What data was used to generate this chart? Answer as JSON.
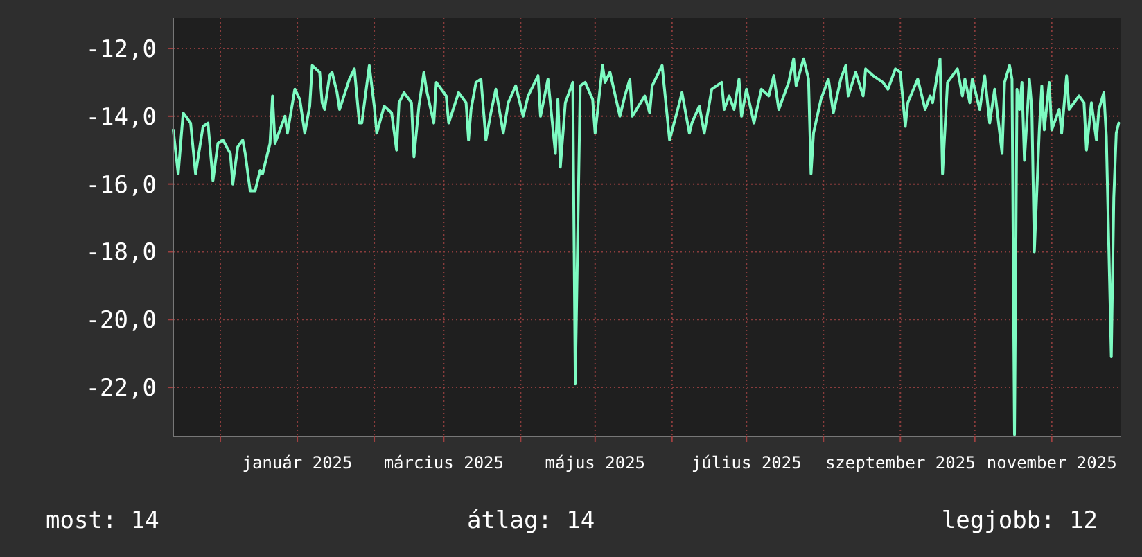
{
  "chart_data": {
    "type": "line",
    "x": [
      "2024-11-12",
      "2024-11-14",
      "2024-11-16",
      "2024-11-19",
      "2024-11-21",
      "2024-11-24",
      "2024-11-26",
      "2024-11-28",
      "2024-11-30",
      "2024-12-02",
      "2024-12-05",
      "2024-12-06",
      "2024-12-08",
      "2024-12-10",
      "2024-12-11",
      "2024-12-13",
      "2024-12-15",
      "2024-12-17",
      "2024-12-18",
      "2024-12-21",
      "2024-12-22",
      "2024-12-23",
      "2024-12-27",
      "2024-12-28",
      "2024-12-31",
      "2025-01-02",
      "2025-01-04",
      "2025-01-06",
      "2025-01-07",
      "2025-01-10",
      "2025-01-11",
      "2025-01-12",
      "2025-01-14",
      "2025-01-15",
      "2025-01-17",
      "2025-01-18",
      "2025-01-22",
      "2025-01-24",
      "2025-01-26",
      "2025-01-27",
      "2025-01-30",
      "2025-02-01",
      "2025-02-02",
      "2025-02-05",
      "2025-02-08",
      "2025-02-10",
      "2025-02-11",
      "2025-02-13",
      "2025-02-16",
      "2025-02-17",
      "2025-02-19",
      "2025-02-21",
      "2025-02-22",
      "2025-02-25",
      "2025-02-26",
      "2025-03-02",
      "2025-03-03",
      "2025-03-07",
      "2025-03-10",
      "2025-03-11",
      "2025-03-12",
      "2025-03-14",
      "2025-03-16",
      "2025-03-18",
      "2025-03-20",
      "2025-03-22",
      "2025-03-25",
      "2025-03-27",
      "2025-03-30",
      "2025-04-02",
      "2025-04-04",
      "2025-04-08",
      "2025-04-09",
      "2025-04-12",
      "2025-04-15",
      "2025-04-16",
      "2025-04-17",
      "2025-04-19",
      "2025-04-22",
      "2025-04-23",
      "2025-04-25",
      "2025-04-27",
      "2025-04-30",
      "2025-05-01",
      "2025-05-04",
      "2025-05-05",
      "2025-05-07",
      "2025-05-11",
      "2025-05-13",
      "2025-05-15",
      "2025-05-16",
      "2025-05-21",
      "2025-05-23",
      "2025-05-24",
      "2025-05-28",
      "2025-05-31",
      "2025-06-04",
      "2025-06-05",
      "2025-06-08",
      "2025-06-09",
      "2025-06-12",
      "2025-06-14",
      "2025-06-17",
      "2025-06-21",
      "2025-06-22",
      "2025-06-24",
      "2025-06-26",
      "2025-06-28",
      "2025-06-29",
      "2025-07-01",
      "2025-07-04",
      "2025-07-07",
      "2025-07-10",
      "2025-07-12",
      "2025-07-14",
      "2025-07-18",
      "2025-07-20",
      "2025-07-21",
      "2025-07-24",
      "2025-07-26",
      "2025-07-27",
      "2025-07-28",
      "2025-07-31",
      "2025-08-03",
      "2025-08-05",
      "2025-08-08",
      "2025-08-10",
      "2025-08-11",
      "2025-08-14",
      "2025-08-17",
      "2025-08-18",
      "2025-08-21",
      "2025-08-25",
      "2025-08-27",
      "2025-08-30",
      "2025-09-01",
      "2025-09-03",
      "2025-09-04",
      "2025-09-08",
      "2025-09-11",
      "2025-09-13",
      "2025-09-14",
      "2025-09-17",
      "2025-09-18",
      "2025-09-20",
      "2025-09-24",
      "2025-09-26",
      "2025-09-27",
      "2025-09-29",
      "2025-09-30",
      "2025-10-03",
      "2025-10-05",
      "2025-10-07",
      "2025-10-09",
      "2025-10-12",
      "2025-10-13",
      "2025-10-15",
      "2025-10-16",
      "2025-10-17",
      "2025-10-18",
      "2025-10-19",
      "2025-10-20",
      "2025-10-21",
      "2025-10-23",
      "2025-10-24",
      "2025-10-25",
      "2025-10-27",
      "2025-10-28",
      "2025-10-29",
      "2025-10-31",
      "2025-11-01",
      "2025-11-04",
      "2025-11-05",
      "2025-11-07",
      "2025-11-08",
      "2025-11-12",
      "2025-11-14",
      "2025-11-15",
      "2025-11-17",
      "2025-11-19",
      "2025-11-20",
      "2025-11-22",
      "2025-11-23",
      "2025-11-25",
      "2025-11-26",
      "2025-11-27",
      "2025-11-28"
    ],
    "series": [
      {
        "color": "#7dfbc2",
        "values": [
          -14.4,
          -15.7,
          -13.9,
          -14.2,
          -15.7,
          -14.3,
          -14.2,
          -15.9,
          -14.8,
          -14.7,
          -15.1,
          -16.0,
          -14.9,
          -14.7,
          -15.1,
          -16.2,
          -16.2,
          -15.6,
          -15.7,
          -14.8,
          -13.4,
          -14.8,
          -14.0,
          -14.5,
          -13.2,
          -13.5,
          -14.5,
          -13.7,
          -12.5,
          -12.7,
          -13.6,
          -13.8,
          -12.8,
          -12.7,
          -13.3,
          -13.8,
          -12.9,
          -12.6,
          -14.2,
          -14.2,
          -12.5,
          -13.7,
          -14.5,
          -13.7,
          -13.9,
          -15.0,
          -13.6,
          -13.3,
          -13.6,
          -15.2,
          -13.7,
          -12.7,
          -13.2,
          -14.2,
          -13.0,
          -13.4,
          -14.2,
          -13.3,
          -13.6,
          -14.7,
          -13.8,
          -13.0,
          -12.9,
          -14.7,
          -13.9,
          -13.2,
          -14.5,
          -13.6,
          -13.1,
          -14.0,
          -13.4,
          -12.8,
          -14.0,
          -12.9,
          -15.1,
          -13.5,
          -15.5,
          -13.6,
          -13.0,
          -21.9,
          -13.1,
          -13.0,
          -13.5,
          -14.5,
          -12.5,
          -13.0,
          -12.7,
          -14.0,
          -13.4,
          -12.9,
          -14.0,
          -13.4,
          -13.9,
          -13.1,
          -12.5,
          -14.7,
          -13.6,
          -13.3,
          -14.5,
          -14.2,
          -13.7,
          -14.5,
          -13.2,
          -13.0,
          -13.8,
          -13.4,
          -13.8,
          -12.9,
          -14.0,
          -13.2,
          -14.2,
          -13.2,
          -13.4,
          -12.8,
          -13.8,
          -13.0,
          -12.3,
          -13.1,
          -12.3,
          -12.9,
          -15.7,
          -14.5,
          -13.5,
          -12.9,
          -13.9,
          -12.9,
          -12.5,
          -13.4,
          -12.7,
          -13.4,
          -12.6,
          -12.8,
          -13.0,
          -13.2,
          -12.6,
          -12.7,
          -14.3,
          -13.6,
          -12.9,
          -13.8,
          -13.4,
          -13.6,
          -12.3,
          -15.7,
          -13.0,
          -12.6,
          -13.4,
          -12.9,
          -13.6,
          -12.9,
          -13.8,
          -12.8,
          -14.2,
          -13.2,
          -15.1,
          -13.0,
          -12.5,
          -12.9,
          -23.4,
          -13.2,
          -13.8,
          -13.0,
          -15.3,
          -12.9,
          -13.8,
          -18.0,
          -14.4,
          -13.1,
          -14.4,
          -13.0,
          -14.4,
          -13.8,
          -14.5,
          -12.8,
          -13.8,
          -13.4,
          -13.6,
          -15.0,
          -13.6,
          -14.7,
          -13.8,
          -13.3,
          -14.6,
          -21.1,
          -16.4,
          -14.5,
          -14.2
        ]
      }
    ],
    "xlim": [
      "2024-11-12",
      "2025-11-29"
    ],
    "xticks": [
      {
        "value": "2024-12-01",
        "label": null
      },
      {
        "value": "2025-01-01",
        "label": "január 2025"
      },
      {
        "value": "2025-02-01",
        "label": null
      },
      {
        "value": "2025-03-01",
        "label": "március 2025"
      },
      {
        "value": "2025-04-01",
        "label": null
      },
      {
        "value": "2025-05-01",
        "label": "május 2025"
      },
      {
        "value": "2025-06-01",
        "label": null
      },
      {
        "value": "2025-07-01",
        "label": "július 2025"
      },
      {
        "value": "2025-08-01",
        "label": null
      },
      {
        "value": "2025-09-01",
        "label": "szeptember 2025"
      },
      {
        "value": "2025-10-01",
        "label": null
      },
      {
        "value": "2025-11-01",
        "label": "november 2025"
      }
    ],
    "ylim": [
      -23.45,
      -11.1
    ],
    "yticks": [
      {
        "value": -12,
        "label": "-12,0"
      },
      {
        "value": -14,
        "label": "-14,0"
      },
      {
        "value": -16,
        "label": "-16,0"
      },
      {
        "value": -18,
        "label": "-18,0"
      },
      {
        "value": -20,
        "label": "-20,0"
      },
      {
        "value": -22,
        "label": "-22,0"
      }
    ],
    "grid": true,
    "annotations": [
      "most: 14",
      "átlag: 14",
      "legjobb: 12"
    ]
  }
}
